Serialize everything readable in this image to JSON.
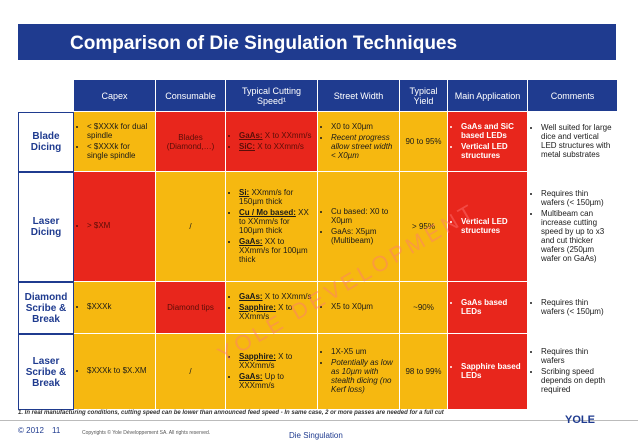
{
  "title": "Comparison of Die Singulation Techniques",
  "headers": [
    "",
    "Capex",
    "Consumable",
    "Typical Cutting Speed¹",
    "Street Width",
    "Typical Yield",
    "Main Application",
    "Comments"
  ],
  "rows": [
    {
      "name": "Blade Dicing",
      "capex": [
        "< $XXXk for dual spindle",
        "< $XXXk for single spindle"
      ],
      "consumable": "Blades (Diamond,…)",
      "speed": [
        {
          "label": "GaAs:",
          "text": " X to XXmm/s"
        },
        {
          "label": "SiC:",
          "text": " X to XXmm/s"
        }
      ],
      "street": [
        "X0 to X0µm",
        "Recent progress allow street width < X0µm"
      ],
      "yield": "90 to 95%",
      "application": [
        "GaAs and SiC based LEDs",
        "Vertical LED structures"
      ],
      "comments": [
        "Well suited for large dice and vertical LED structures with metal substrates"
      ]
    },
    {
      "name": "Laser Dicing",
      "capex": [
        "> $XM"
      ],
      "consumable": "/",
      "speed": [
        {
          "label": "Si:",
          "text": " XXmm/s for 150µm thick"
        },
        {
          "label": "Cu / Mo based:",
          "text": " XX to XXmm/s for 100µm thick"
        },
        {
          "label": "GaAs:",
          "text": " XX to XXmm/s for 100µm thick"
        }
      ],
      "street": [
        "Cu based: X0 to X0µm",
        "GaAs: X5µm (Multibeam)"
      ],
      "yield": "> 95%",
      "application": [
        "Vertical LED structures"
      ],
      "comments": [
        "Requires thin wafers (< 150µm)",
        "Multibeam can increase cutting speed by up to x3 and cut thicker wafers (250µm wafer on GaAs)"
      ]
    },
    {
      "name": "Diamond Scribe & Break",
      "capex": [
        "$XXXk"
      ],
      "consumable": "Diamond tips",
      "speed": [
        {
          "label": "GaAs:",
          "text": " X to XXmm/s"
        },
        {
          "label": "Sapphire:",
          "text": " X to XXmm/s"
        }
      ],
      "street": [
        "X5 to X0µm"
      ],
      "yield": "~90%",
      "application": [
        "GaAs based LEDs"
      ],
      "comments": [
        "Requires thin wafers (< 150µm)"
      ]
    },
    {
      "name": "Laser Scribe & Break",
      "capex": [
        "$XXXk to $X.XM"
      ],
      "consumable": "/",
      "speed": [
        {
          "label": "Sapphire:",
          "text": " X to XXXmm/s"
        },
        {
          "label": "GaAs:",
          "text": " Up to XXXmm/s"
        }
      ],
      "street": [
        "1X-X5 um",
        "Potentially as low as 10µm with stealth dicing (no Kerf loss)"
      ],
      "yield": "98 to 99%",
      "application": [
        "Sapphire based LEDs"
      ],
      "comments": [
        "Requires thin wafers",
        "Scribing speed depends on depth required"
      ]
    }
  ],
  "footnote": "1. In real manufacturing conditions, cutting speed can be lower than announced feed speed - In same case, 2 or more passes are needed for a full cut",
  "footer": {
    "copyright": "© 2012",
    "page": "11",
    "rights": "Copyrights © Yole Développement SA. All rights reserved.",
    "center": "Die Singulation",
    "logo": "YOLE"
  },
  "watermark": "YOLE DEVELOPMENT",
  "colors": {
    "blue": "#1f3b8f",
    "red": "#e8261c",
    "yellow": "#f6b810",
    "green": "#3f9d33"
  }
}
